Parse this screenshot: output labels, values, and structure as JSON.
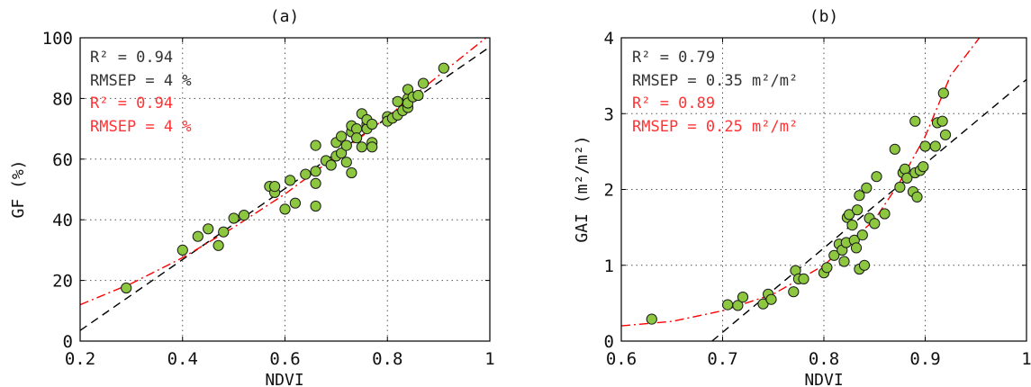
{
  "chart_data": [
    {
      "type": "scatter",
      "panel_label": "(a)",
      "xlabel": "NDVI",
      "ylabel": "GF (%)",
      "xlim": [
        0.2,
        1.0
      ],
      "ylim": [
        0,
        100
      ],
      "xticks": [
        "0.2",
        "0.4",
        "0.6",
        "0.8",
        "1"
      ],
      "yticks": [
        "0",
        "20",
        "40",
        "60",
        "80",
        "100"
      ],
      "grid": true,
      "annotations": [
        {
          "text": "R² = 0.94",
          "color": "#333333"
        },
        {
          "text": "RMSEP = 4 %",
          "color": "#333333"
        },
        {
          "text": "R² = 0.94",
          "color": "#ff3333"
        },
        {
          "text": "RMSEP = 4 %",
          "color": "#ff3333"
        }
      ],
      "fits": [
        {
          "style": "dashed",
          "color": "#000000",
          "model": "linear",
          "points": [
            [
              0.2,
              3.5
            ],
            [
              1.0,
              97
            ]
          ]
        },
        {
          "style": "dash-dot",
          "color": "#ff0000",
          "model": "curve",
          "points": [
            [
              0.2,
              12
            ],
            [
              0.3,
              19
            ],
            [
              0.4,
              27.5
            ],
            [
              0.5,
              37.5
            ],
            [
              0.6,
              48.5
            ],
            [
              0.7,
              61
            ],
            [
              0.8,
              74
            ],
            [
              0.9,
              87.5
            ],
            [
              1.0,
              101
            ]
          ]
        }
      ],
      "points": [
        [
          0.29,
          17.5
        ],
        [
          0.4,
          30
        ],
        [
          0.43,
          34.5
        ],
        [
          0.45,
          37
        ],
        [
          0.47,
          31.5
        ],
        [
          0.48,
          36
        ],
        [
          0.5,
          40.5
        ],
        [
          0.52,
          41.5
        ],
        [
          0.57,
          51
        ],
        [
          0.58,
          49
        ],
        [
          0.58,
          51
        ],
        [
          0.6,
          43.5
        ],
        [
          0.61,
          53
        ],
        [
          0.62,
          45.5
        ],
        [
          0.64,
          55
        ],
        [
          0.66,
          56
        ],
        [
          0.66,
          52
        ],
        [
          0.66,
          64.5
        ],
        [
          0.66,
          44.5
        ],
        [
          0.68,
          59.5
        ],
        [
          0.69,
          58
        ],
        [
          0.7,
          61
        ],
        [
          0.7,
          65.5
        ],
        [
          0.71,
          67.5
        ],
        [
          0.71,
          62
        ],
        [
          0.72,
          64.5
        ],
        [
          0.72,
          59
        ],
        [
          0.73,
          69
        ],
        [
          0.73,
          71
        ],
        [
          0.73,
          55.5
        ],
        [
          0.74,
          70
        ],
        [
          0.74,
          67
        ],
        [
          0.75,
          75
        ],
        [
          0.75,
          64
        ],
        [
          0.76,
          71.5
        ],
        [
          0.76,
          70
        ],
        [
          0.76,
          73
        ],
        [
          0.77,
          65.5
        ],
        [
          0.77,
          64
        ],
        [
          0.77,
          71.5
        ],
        [
          0.8,
          74
        ],
        [
          0.8,
          72.5
        ],
        [
          0.81,
          73.5
        ],
        [
          0.82,
          79
        ],
        [
          0.82,
          74.5
        ],
        [
          0.83,
          76
        ],
        [
          0.84,
          77
        ],
        [
          0.84,
          80
        ],
        [
          0.84,
          83
        ],
        [
          0.84,
          78.5
        ],
        [
          0.85,
          80.5
        ],
        [
          0.86,
          81
        ],
        [
          0.87,
          85
        ],
        [
          0.91,
          90
        ]
      ]
    },
    {
      "type": "scatter",
      "panel_label": "(b)",
      "xlabel": "NDVI",
      "ylabel": "GAI (m²/m²)",
      "xlim": [
        0.6,
        1.0
      ],
      "ylim": [
        0,
        4
      ],
      "xticks": [
        "0.6",
        "0.7",
        "0.8",
        "0.9",
        "1"
      ],
      "yticks": [
        "0",
        "1",
        "2",
        "3",
        "4"
      ],
      "grid": true,
      "annotations": [
        {
          "text": "R² = 0.79",
          "color": "#333333"
        },
        {
          "text": "RMSEP = 0.35 m²/m²",
          "color": "#333333"
        },
        {
          "text": "R² = 0.89",
          "color": "#ff3333"
        },
        {
          "text": "RMSEP = 0.25 m²/m²",
          "color": "#ff3333"
        }
      ],
      "fits": [
        {
          "style": "dashed",
          "color": "#000000",
          "model": "linear",
          "points": [
            [
              0.6895,
              0
            ],
            [
              1.0,
              3.45
            ]
          ]
        },
        {
          "style": "dash-dot",
          "color": "#ff0000",
          "model": "exponential",
          "points": [
            [
              0.6,
              0.2
            ],
            [
              0.65,
              0.26
            ],
            [
              0.7,
              0.4
            ],
            [
              0.75,
              0.62
            ],
            [
              0.8,
              1.0
            ],
            [
              0.85,
              1.6
            ],
            [
              0.875,
              2.1
            ],
            [
              0.9,
              2.7
            ],
            [
              0.925,
              3.5
            ],
            [
              0.9535,
              4.0
            ]
          ]
        }
      ],
      "points": [
        [
          0.63,
          0.29
        ],
        [
          0.705,
          0.48
        ],
        [
          0.715,
          0.47
        ],
        [
          0.72,
          0.58
        ],
        [
          0.74,
          0.49
        ],
        [
          0.745,
          0.62
        ],
        [
          0.748,
          0.55
        ],
        [
          0.77,
          0.65
        ],
        [
          0.772,
          0.93
        ],
        [
          0.775,
          0.82
        ],
        [
          0.78,
          0.82
        ],
        [
          0.8,
          0.9
        ],
        [
          0.803,
          0.97
        ],
        [
          0.81,
          1.13
        ],
        [
          0.815,
          1.28
        ],
        [
          0.818,
          1.2
        ],
        [
          0.82,
          1.05
        ],
        [
          0.822,
          1.3
        ],
        [
          0.823,
          1.63
        ],
        [
          0.825,
          1.67
        ],
        [
          0.828,
          1.53
        ],
        [
          0.83,
          1.33
        ],
        [
          0.832,
          1.23
        ],
        [
          0.833,
          1.73
        ],
        [
          0.835,
          1.92
        ],
        [
          0.835,
          0.95
        ],
        [
          0.838,
          1.4
        ],
        [
          0.84,
          1.0
        ],
        [
          0.842,
          2.02
        ],
        [
          0.845,
          1.62
        ],
        [
          0.85,
          1.55
        ],
        [
          0.852,
          2.17
        ],
        [
          0.86,
          1.68
        ],
        [
          0.87,
          2.53
        ],
        [
          0.875,
          2.03
        ],
        [
          0.878,
          2.22
        ],
        [
          0.88,
          2.27
        ],
        [
          0.882,
          2.15
        ],
        [
          0.888,
          1.97
        ],
        [
          0.89,
          2.9
        ],
        [
          0.89,
          2.22
        ],
        [
          0.892,
          1.9
        ],
        [
          0.895,
          2.25
        ],
        [
          0.898,
          2.3
        ],
        [
          0.9,
          2.57
        ],
        [
          0.91,
          2.57
        ],
        [
          0.912,
          2.88
        ],
        [
          0.917,
          2.9
        ],
        [
          0.918,
          3.27
        ],
        [
          0.92,
          2.72
        ]
      ]
    }
  ]
}
